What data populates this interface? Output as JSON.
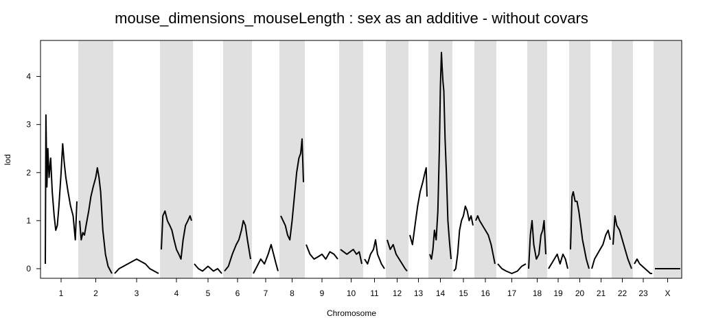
{
  "chart_data": {
    "type": "line",
    "title": "mouse_dimensions_mouseLength : sex as an additive - without covars",
    "xlabel": "Chromosome",
    "ylabel": "lod",
    "ylim": [
      -0.2,
      4.75
    ],
    "yticks": [
      0,
      1,
      2,
      3,
      4
    ],
    "grid": false,
    "shaded_bands": "alternating chromosomes (2,4,6,...,X) shaded light gray",
    "colors": {
      "line": "#000000",
      "band": "#e0e0e0",
      "frame": "#000000"
    },
    "chromosomes": [
      {
        "label": "1",
        "points": [
          [
            0,
            0.1
          ],
          [
            0.02,
            3.2
          ],
          [
            0.05,
            1.7
          ],
          [
            0.08,
            2.5
          ],
          [
            0.12,
            1.9
          ],
          [
            0.17,
            2.3
          ],
          [
            0.22,
            1.6
          ],
          [
            0.28,
            1.1
          ],
          [
            0.33,
            0.8
          ],
          [
            0.38,
            0.9
          ],
          [
            0.43,
            1.3
          ],
          [
            0.5,
            2.0
          ],
          [
            0.55,
            2.6
          ],
          [
            0.6,
            2.2
          ],
          [
            0.65,
            1.9
          ],
          [
            0.72,
            1.6
          ],
          [
            0.8,
            1.3
          ],
          [
            0.88,
            1.1
          ],
          [
            0.95,
            0.6
          ],
          [
            1,
            1.4
          ]
        ]
      },
      {
        "label": "2",
        "points": [
          [
            0,
            1.0
          ],
          [
            0.05,
            0.6
          ],
          [
            0.1,
            0.75
          ],
          [
            0.15,
            0.7
          ],
          [
            0.2,
            0.9
          ],
          [
            0.28,
            1.2
          ],
          [
            0.35,
            1.5
          ],
          [
            0.42,
            1.7
          ],
          [
            0.5,
            1.9
          ],
          [
            0.55,
            2.1
          ],
          [
            0.6,
            1.9
          ],
          [
            0.65,
            1.6
          ],
          [
            0.72,
            0.8
          ],
          [
            0.8,
            0.3
          ],
          [
            0.88,
            0.05
          ],
          [
            1,
            -0.1
          ]
        ]
      },
      {
        "label": "3",
        "points": [
          [
            0,
            -0.1
          ],
          [
            0.1,
            0.0
          ],
          [
            0.2,
            0.05
          ],
          [
            0.3,
            0.1
          ],
          [
            0.4,
            0.15
          ],
          [
            0.5,
            0.2
          ],
          [
            0.6,
            0.15
          ],
          [
            0.7,
            0.1
          ],
          [
            0.8,
            0.0
          ],
          [
            0.9,
            -0.05
          ],
          [
            1,
            -0.1
          ]
        ]
      },
      {
        "label": "4",
        "points": [
          [
            0,
            0.4
          ],
          [
            0.05,
            1.1
          ],
          [
            0.12,
            1.2
          ],
          [
            0.2,
            1.0
          ],
          [
            0.28,
            0.9
          ],
          [
            0.35,
            0.8
          ],
          [
            0.42,
            0.6
          ],
          [
            0.5,
            0.4
          ],
          [
            0.58,
            0.3
          ],
          [
            0.65,
            0.2
          ],
          [
            0.72,
            0.6
          ],
          [
            0.8,
            0.9
          ],
          [
            0.88,
            1.0
          ],
          [
            0.95,
            1.1
          ],
          [
            1,
            1.0
          ]
        ]
      },
      {
        "label": "5",
        "points": [
          [
            0,
            0.1
          ],
          [
            0.15,
            0.0
          ],
          [
            0.3,
            -0.05
          ],
          [
            0.5,
            0.05
          ],
          [
            0.7,
            -0.05
          ],
          [
            0.85,
            0.0
          ],
          [
            1,
            -0.1
          ]
        ]
      },
      {
        "label": "6",
        "points": [
          [
            0,
            -0.05
          ],
          [
            0.15,
            0.05
          ],
          [
            0.3,
            0.3
          ],
          [
            0.45,
            0.5
          ],
          [
            0.55,
            0.6
          ],
          [
            0.65,
            0.8
          ],
          [
            0.72,
            1.0
          ],
          [
            0.8,
            0.9
          ],
          [
            0.88,
            0.6
          ],
          [
            1,
            0.2
          ]
        ]
      },
      {
        "label": "7",
        "points": [
          [
            0,
            -0.1
          ],
          [
            0.15,
            0.05
          ],
          [
            0.3,
            0.2
          ],
          [
            0.45,
            0.1
          ],
          [
            0.6,
            0.3
          ],
          [
            0.72,
            0.5
          ],
          [
            0.82,
            0.3
          ],
          [
            0.92,
            0.1
          ],
          [
            1,
            -0.05
          ]
        ]
      },
      {
        "label": "8",
        "points": [
          [
            0,
            1.1
          ],
          [
            0.1,
            1.0
          ],
          [
            0.2,
            0.9
          ],
          [
            0.3,
            0.7
          ],
          [
            0.4,
            0.6
          ],
          [
            0.5,
            1.0
          ],
          [
            0.6,
            1.5
          ],
          [
            0.7,
            2.0
          ],
          [
            0.8,
            2.3
          ],
          [
            0.88,
            2.4
          ],
          [
            0.94,
            2.7
          ],
          [
            1,
            1.8
          ]
        ]
      },
      {
        "label": "9",
        "points": [
          [
            0,
            0.5
          ],
          [
            0.12,
            0.3
          ],
          [
            0.25,
            0.2
          ],
          [
            0.38,
            0.25
          ],
          [
            0.5,
            0.3
          ],
          [
            0.62,
            0.2
          ],
          [
            0.75,
            0.35
          ],
          [
            0.88,
            0.3
          ],
          [
            1,
            0.2
          ]
        ]
      },
      {
        "label": "10",
        "points": [
          [
            0,
            0.4
          ],
          [
            0.15,
            0.35
          ],
          [
            0.3,
            0.3
          ],
          [
            0.45,
            0.35
          ],
          [
            0.6,
            0.4
          ],
          [
            0.75,
            0.3
          ],
          [
            0.88,
            0.35
          ],
          [
            1,
            0.1
          ]
        ]
      },
      {
        "label": "11",
        "points": [
          [
            0,
            0.2
          ],
          [
            0.15,
            0.1
          ],
          [
            0.3,
            0.3
          ],
          [
            0.45,
            0.4
          ],
          [
            0.55,
            0.6
          ],
          [
            0.65,
            0.3
          ],
          [
            0.75,
            0.2
          ],
          [
            0.85,
            0.1
          ],
          [
            1,
            0.0
          ]
        ]
      },
      {
        "label": "12",
        "points": [
          [
            0,
            0.6
          ],
          [
            0.15,
            0.4
          ],
          [
            0.3,
            0.5
          ],
          [
            0.45,
            0.3
          ],
          [
            0.6,
            0.2
          ],
          [
            0.75,
            0.1
          ],
          [
            0.9,
            0.0
          ],
          [
            1,
            -0.05
          ]
        ]
      },
      {
        "label": "13",
        "points": [
          [
            0,
            0.7
          ],
          [
            0.15,
            0.5
          ],
          [
            0.3,
            0.9
          ],
          [
            0.45,
            1.3
          ],
          [
            0.6,
            1.6
          ],
          [
            0.75,
            1.8
          ],
          [
            0.88,
            2.0
          ],
          [
            0.95,
            2.1
          ],
          [
            1,
            1.5
          ]
        ]
      },
      {
        "label": "14",
        "points": [
          [
            0,
            0.3
          ],
          [
            0.08,
            0.2
          ],
          [
            0.15,
            0.4
          ],
          [
            0.22,
            0.8
          ],
          [
            0.3,
            0.6
          ],
          [
            0.38,
            1.2
          ],
          [
            0.45,
            2.5
          ],
          [
            0.5,
            3.8
          ],
          [
            0.55,
            4.5
          ],
          [
            0.58,
            4.2
          ],
          [
            0.62,
            3.9
          ],
          [
            0.66,
            3.7
          ],
          [
            0.72,
            2.7
          ],
          [
            0.78,
            2.0
          ],
          [
            0.85,
            1.0
          ],
          [
            0.92,
            0.6
          ],
          [
            1,
            0.2
          ]
        ]
      },
      {
        "label": "15",
        "points": [
          [
            0,
            -0.05
          ],
          [
            0.1,
            0.0
          ],
          [
            0.2,
            0.3
          ],
          [
            0.3,
            0.8
          ],
          [
            0.4,
            1.0
          ],
          [
            0.5,
            1.1
          ],
          [
            0.6,
            1.3
          ],
          [
            0.7,
            1.2
          ],
          [
            0.8,
            1.0
          ],
          [
            0.9,
            1.1
          ],
          [
            1,
            0.9
          ]
        ]
      },
      {
        "label": "16",
        "points": [
          [
            0,
            1.0
          ],
          [
            0.1,
            1.1
          ],
          [
            0.2,
            1.0
          ],
          [
            0.35,
            0.9
          ],
          [
            0.5,
            0.8
          ],
          [
            0.65,
            0.7
          ],
          [
            0.8,
            0.5
          ],
          [
            0.9,
            0.3
          ],
          [
            1,
            0.1
          ]
        ]
      },
      {
        "label": "17",
        "points": [
          [
            0,
            0.1
          ],
          [
            0.15,
            0.0
          ],
          [
            0.3,
            -0.05
          ],
          [
            0.5,
            -0.1
          ],
          [
            0.7,
            -0.05
          ],
          [
            0.85,
            0.05
          ],
          [
            1,
            0.1
          ]
        ]
      },
      {
        "label": "18",
        "points": [
          [
            0,
            0.0
          ],
          [
            0.1,
            0.7
          ],
          [
            0.2,
            1.0
          ],
          [
            0.3,
            0.5
          ],
          [
            0.45,
            0.2
          ],
          [
            0.6,
            0.3
          ],
          [
            0.72,
            0.7
          ],
          [
            0.82,
            0.8
          ],
          [
            0.9,
            1.0
          ],
          [
            1,
            0.3
          ]
        ]
      },
      {
        "label": "19",
        "points": [
          [
            0,
            0.0
          ],
          [
            0.15,
            0.1
          ],
          [
            0.3,
            0.2
          ],
          [
            0.45,
            0.3
          ],
          [
            0.6,
            0.1
          ],
          [
            0.75,
            0.3
          ],
          [
            0.88,
            0.2
          ],
          [
            1,
            0.0
          ]
        ]
      },
      {
        "label": "20",
        "points": [
          [
            0,
            0.4
          ],
          [
            0.08,
            1.5
          ],
          [
            0.15,
            1.6
          ],
          [
            0.25,
            1.4
          ],
          [
            0.35,
            1.4
          ],
          [
            0.45,
            1.2
          ],
          [
            0.55,
            0.9
          ],
          [
            0.65,
            0.6
          ],
          [
            0.75,
            0.4
          ],
          [
            0.85,
            0.2
          ],
          [
            1,
            0.0
          ]
        ]
      },
      {
        "label": "21",
        "points": [
          [
            0,
            0.0
          ],
          [
            0.15,
            0.2
          ],
          [
            0.3,
            0.3
          ],
          [
            0.45,
            0.4
          ],
          [
            0.6,
            0.5
          ],
          [
            0.75,
            0.7
          ],
          [
            0.88,
            0.8
          ],
          [
            1,
            0.6
          ]
        ]
      },
      {
        "label": "22",
        "points": [
          [
            0,
            0.5
          ],
          [
            0.1,
            1.1
          ],
          [
            0.2,
            0.9
          ],
          [
            0.35,
            0.8
          ],
          [
            0.5,
            0.6
          ],
          [
            0.65,
            0.4
          ],
          [
            0.8,
            0.2
          ],
          [
            0.9,
            0.1
          ],
          [
            1,
            0.0
          ]
        ]
      },
      {
        "label": "23",
        "points": [
          [
            0,
            0.1
          ],
          [
            0.15,
            0.2
          ],
          [
            0.3,
            0.1
          ],
          [
            0.45,
            0.05
          ],
          [
            0.6,
            0.0
          ],
          [
            0.75,
            -0.05
          ],
          [
            0.9,
            -0.1
          ],
          [
            1,
            -0.1
          ]
        ]
      },
      {
        "label": "X",
        "points": [
          [
            0,
            0.0
          ],
          [
            0.2,
            0.0
          ],
          [
            0.5,
            0.0
          ],
          [
            0.8,
            0.0
          ],
          [
            1,
            0.0
          ]
        ]
      }
    ]
  }
}
